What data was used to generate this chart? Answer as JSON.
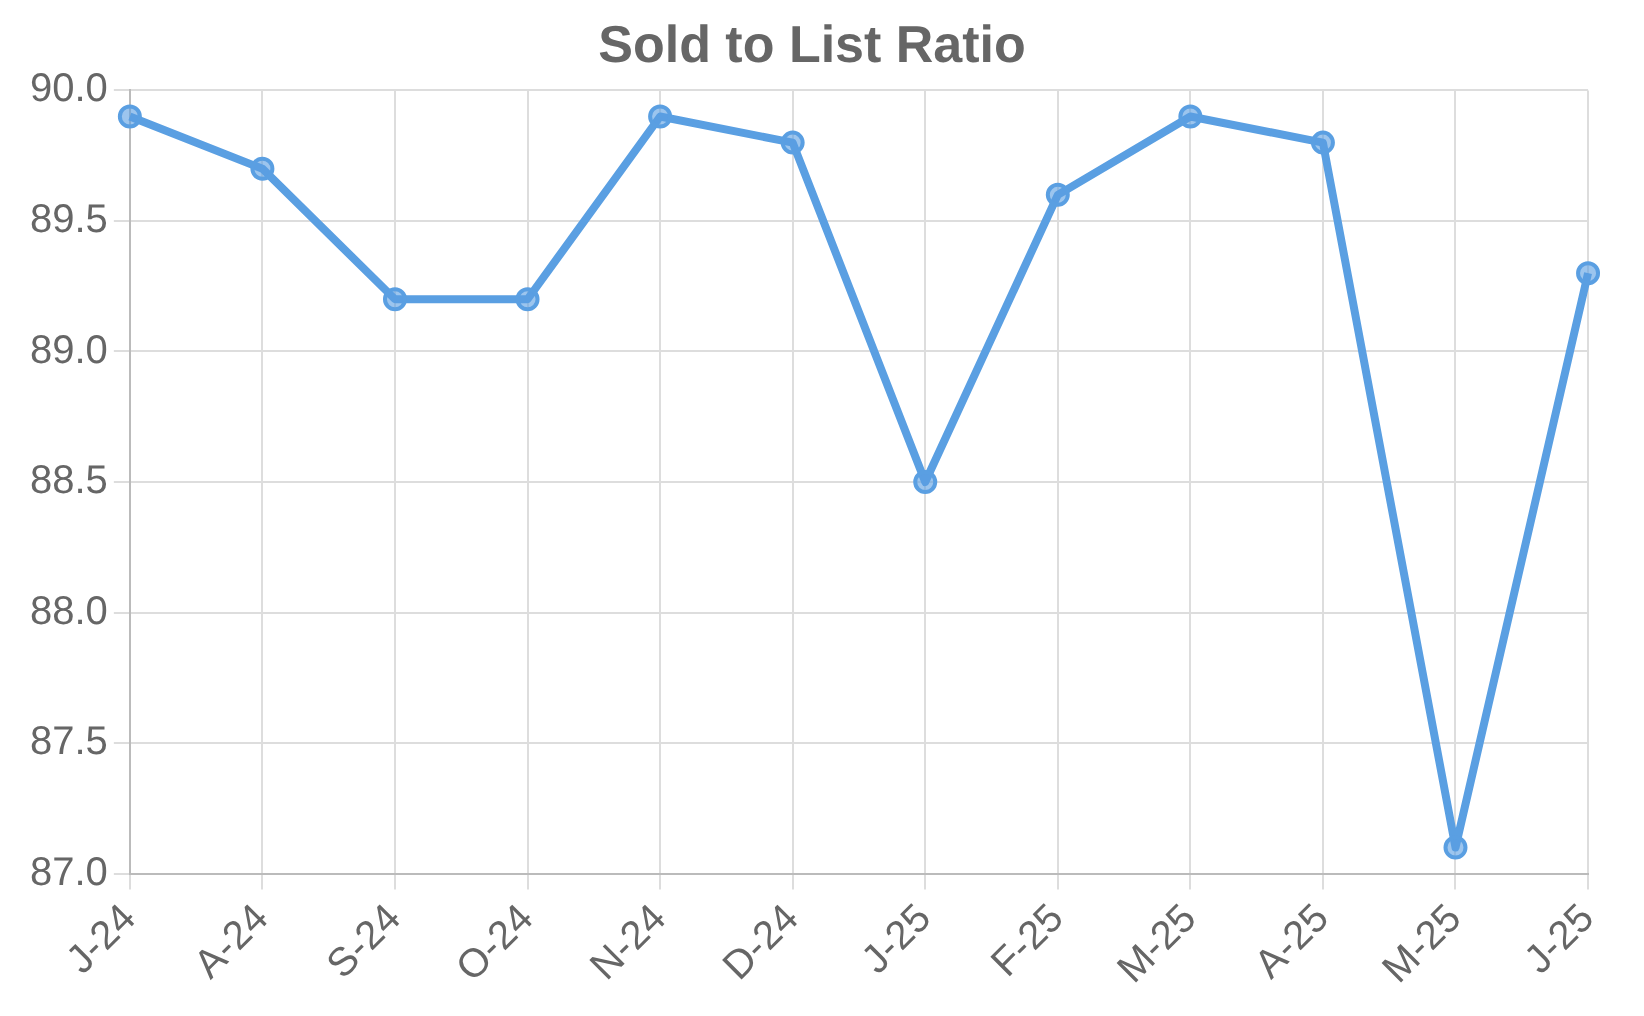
{
  "chart_data": {
    "type": "line",
    "title": "Sold to List Ratio",
    "categories": [
      "J-24",
      "A-24",
      "S-24",
      "O-24",
      "N-24",
      "D-24",
      "J-25",
      "F-25",
      "M-25",
      "A-25",
      "M-25",
      "J-25"
    ],
    "series": [
      {
        "color": "#5a9fe2",
        "values": [
          89.9,
          89.7,
          89.2,
          89.2,
          89.9,
          89.8,
          88.5,
          89.6,
          89.9,
          89.8,
          87.1,
          89.3
        ]
      }
    ],
    "ylim": [
      87.0,
      90.0
    ],
    "yticks": [
      {
        "value": 87,
        "label": "87.0"
      },
      {
        "value": 87.5,
        "label": "87.5"
      },
      {
        "value": 88,
        "label": "88.0"
      },
      {
        "value": 88.5,
        "label": "88.5"
      },
      {
        "value": 89,
        "label": "89.0"
      },
      {
        "value": 89.5,
        "label": "89.5"
      },
      {
        "value": 90,
        "label": "90.0"
      }
    ],
    "grid": true,
    "legend": false,
    "marker": "circle",
    "line_style": "solid"
  }
}
